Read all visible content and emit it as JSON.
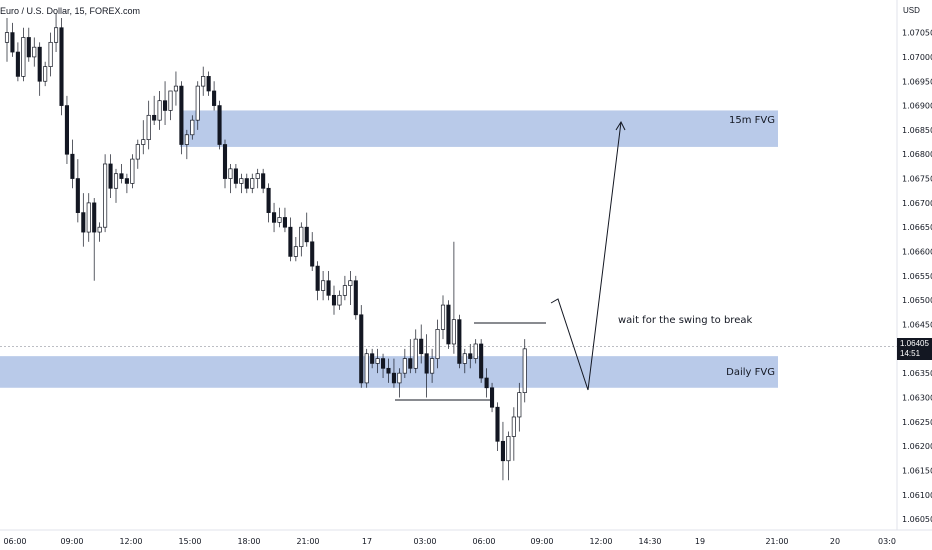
{
  "header": {
    "symbol_line": "Euro / U.S. Dollar, 15, FOREX.com"
  },
  "price_scale": {
    "currency": "USD",
    "ticks": [
      "1.07050",
      "1.07000",
      "1.06950",
      "1.06900",
      "1.06850",
      "1.06800",
      "1.06750",
      "1.06700",
      "1.06650",
      "1.06600",
      "1.06550",
      "1.06500",
      "1.06450",
      "1.06350",
      "1.06300",
      "1.06250",
      "1.06200",
      "1.06150",
      "1.06100",
      "1.06050"
    ],
    "current_price": "1.06405",
    "countdown": "14:51"
  },
  "time_axis": {
    "labels": [
      "06:00",
      "09:00",
      "12:00",
      "15:00",
      "18:00",
      "21:00",
      "17",
      "03:00",
      "06:00",
      "09:00",
      "12:00",
      "14:30",
      "19",
      "21:00",
      "20",
      "03:0"
    ]
  },
  "zones": [
    {
      "name": "15m FVG",
      "top": 1.0689,
      "bottom": 1.06815,
      "color": "#b5c7e8"
    },
    {
      "name": "Daily FVG",
      "top": 1.06385,
      "bottom": 1.0632,
      "color": "#b5c7e8"
    }
  ],
  "annotations": {
    "note": "wait for the swing to break"
  },
  "chart_data": {
    "type": "candlestick",
    "symbol": "Euro / U.S. Dollar, 15, FOREX.com",
    "ylim": [
      1.0604,
      1.0708
    ],
    "candles": [
      [
        1.0703,
        1.0708,
        1.0699,
        1.0705
      ],
      [
        1.0705,
        1.0707,
        1.07,
        1.0701
      ],
      [
        1.0701,
        1.0703,
        1.0695,
        1.0696
      ],
      [
        1.0696,
        1.0706,
        1.0695,
        1.0704
      ],
      [
        1.0704,
        1.0706,
        1.0699,
        1.07
      ],
      [
        1.07,
        1.0704,
        1.0698,
        1.0702
      ],
      [
        1.0702,
        1.0703,
        1.0692,
        1.0695
      ],
      [
        1.0695,
        1.0699,
        1.0694,
        1.0698
      ],
      [
        1.0698,
        1.0705,
        1.0696,
        1.0703
      ],
      [
        1.0703,
        1.0709,
        1.0701,
        1.0706
      ],
      [
        1.0706,
        1.0708,
        1.0688,
        1.069
      ],
      [
        1.069,
        1.0692,
        1.0678,
        1.068
      ],
      [
        1.068,
        1.0683,
        1.0673,
        1.0675
      ],
      [
        1.0675,
        1.0679,
        1.0666,
        1.0668
      ],
      [
        1.0668,
        1.0672,
        1.0661,
        1.0664
      ],
      [
        1.0664,
        1.0672,
        1.0662,
        1.067
      ],
      [
        1.067,
        1.0671,
        1.0654,
        1.0664
      ],
      [
        1.0664,
        1.0666,
        1.0662,
        1.0665
      ],
      [
        1.0665,
        1.068,
        1.0664,
        1.0678
      ],
      [
        1.0678,
        1.068,
        1.0671,
        1.0673
      ],
      [
        1.0673,
        1.0677,
        1.067,
        1.0676
      ],
      [
        1.0676,
        1.0678,
        1.0674,
        1.0675
      ],
      [
        1.0675,
        1.0676,
        1.0672,
        1.0674
      ],
      [
        1.0674,
        1.068,
        1.0673,
        1.0679
      ],
      [
        1.0679,
        1.0683,
        1.0677,
        1.0682
      ],
      [
        1.0682,
        1.0687,
        1.068,
        1.0683
      ],
      [
        1.0683,
        1.0691,
        1.0681,
        1.0688
      ],
      [
        1.0688,
        1.0692,
        1.0686,
        1.0687
      ],
      [
        1.0687,
        1.0693,
        1.0685,
        1.0691
      ],
      [
        1.0691,
        1.0695,
        1.0686,
        1.0689
      ],
      [
        1.0689,
        1.0693,
        1.0687,
        1.0693
      ],
      [
        1.0693,
        1.0697,
        1.069,
        1.0694
      ],
      [
        1.0694,
        1.0695,
        1.068,
        1.0682
      ],
      [
        1.0682,
        1.0685,
        1.0679,
        1.0684
      ],
      [
        1.0684,
        1.0688,
        1.0683,
        1.0687
      ],
      [
        1.0687,
        1.0695,
        1.0685,
        1.0694
      ],
      [
        1.0694,
        1.0698,
        1.0692,
        1.0696
      ],
      [
        1.0696,
        1.0697,
        1.0692,
        1.0693
      ],
      [
        1.0693,
        1.0695,
        1.0689,
        1.069
      ],
      [
        1.069,
        1.0691,
        1.0681,
        1.0682
      ],
      [
        1.0682,
        1.0683,
        1.0673,
        1.0675
      ],
      [
        1.0675,
        1.0678,
        1.0672,
        1.0677
      ],
      [
        1.0677,
        1.0678,
        1.0673,
        1.0674
      ],
      [
        1.0674,
        1.0676,
        1.0672,
        1.0675
      ],
      [
        1.0675,
        1.0676,
        1.0672,
        1.0673
      ],
      [
        1.0673,
        1.0676,
        1.0672,
        1.0675
      ],
      [
        1.0675,
        1.0677,
        1.0673,
        1.0676
      ],
      [
        1.0676,
        1.0677,
        1.0672,
        1.0673
      ],
      [
        1.0673,
        1.0674,
        1.0666,
        1.0668
      ],
      [
        1.0668,
        1.067,
        1.0664,
        1.0666
      ],
      [
        1.0666,
        1.0669,
        1.0665,
        1.0667
      ],
      [
        1.0667,
        1.0669,
        1.0664,
        1.0665
      ],
      [
        1.0665,
        1.0667,
        1.0658,
        1.0659
      ],
      [
        1.0659,
        1.0663,
        1.0658,
        1.0661
      ],
      [
        1.0661,
        1.0666,
        1.0659,
        1.0665
      ],
      [
        1.0665,
        1.0668,
        1.0661,
        1.0662
      ],
      [
        1.0662,
        1.0664,
        1.0656,
        1.0657
      ],
      [
        1.0657,
        1.0658,
        1.065,
        1.0652
      ],
      [
        1.0652,
        1.0656,
        1.065,
        1.0654
      ],
      [
        1.0654,
        1.0656,
        1.065,
        1.0651
      ],
      [
        1.0651,
        1.0653,
        1.0647,
        1.0649
      ],
      [
        1.0649,
        1.0652,
        1.0648,
        1.0651
      ],
      [
        1.0651,
        1.0655,
        1.065,
        1.0653
      ],
      [
        1.0653,
        1.0656,
        1.0649,
        1.0654
      ],
      [
        1.0654,
        1.0655,
        1.0646,
        1.0647
      ],
      [
        1.0647,
        1.0649,
        1.0632,
        1.0633
      ],
      [
        1.0633,
        1.064,
        1.0632,
        1.0639
      ],
      [
        1.0639,
        1.064,
        1.0636,
        1.0637
      ],
      [
        1.0637,
        1.064,
        1.0635,
        1.0638
      ],
      [
        1.0638,
        1.0639,
        1.0634,
        1.0636
      ],
      [
        1.0636,
        1.0638,
        1.0633,
        1.0635
      ],
      [
        1.0635,
        1.0638,
        1.0632,
        1.0633
      ],
      [
        1.0633,
        1.0636,
        1.063,
        1.0635
      ],
      [
        1.0635,
        1.064,
        1.0634,
        1.0638
      ],
      [
        1.0638,
        1.0642,
        1.0635,
        1.0636
      ],
      [
        1.0636,
        1.0644,
        1.0635,
        1.0642
      ],
      [
        1.0642,
        1.0645,
        1.0637,
        1.0639
      ],
      [
        1.0639,
        1.0643,
        1.063,
        1.0635
      ],
      [
        1.0635,
        1.064,
        1.0633,
        1.0638
      ],
      [
        1.0638,
        1.0646,
        1.0636,
        1.0644
      ],
      [
        1.0644,
        1.0651,
        1.0642,
        1.0649
      ],
      [
        1.0649,
        1.065,
        1.064,
        1.0641
      ],
      [
        1.0641,
        1.0662,
        1.0639,
        1.0646
      ],
      [
        1.0646,
        1.0647,
        1.0636,
        1.0637
      ],
      [
        1.0637,
        1.064,
        1.0635,
        1.0639
      ],
      [
        1.0639,
        1.0641,
        1.0636,
        1.0638
      ],
      [
        1.0638,
        1.0642,
        1.0637,
        1.0641
      ],
      [
        1.0641,
        1.0642,
        1.0633,
        1.0634
      ],
      [
        1.0634,
        1.0636,
        1.063,
        1.0632
      ],
      [
        1.0632,
        1.0633,
        1.0627,
        1.0628
      ],
      [
        1.0628,
        1.0629,
        1.0619,
        1.0621
      ],
      [
        1.0621,
        1.0625,
        1.0613,
        1.0617
      ],
      [
        1.0617,
        1.0623,
        1.0613,
        1.0622
      ],
      [
        1.0622,
        1.0628,
        1.0617,
        1.0626
      ],
      [
        1.0626,
        1.0633,
        1.0623,
        1.0631
      ],
      [
        1.0631,
        1.0642,
        1.0629,
        1.064
      ]
    ]
  }
}
